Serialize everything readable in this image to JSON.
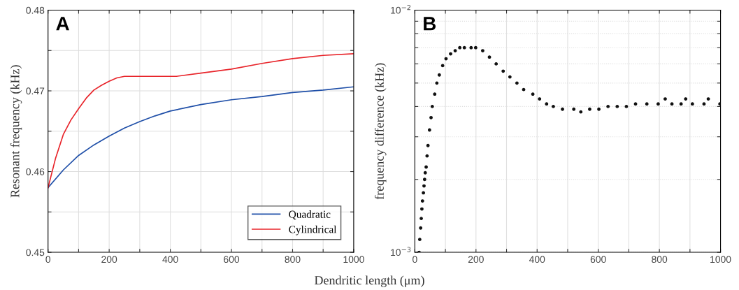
{
  "chart_data": [
    {
      "type": "line",
      "ylabel": "Resonant frequency (kHz)",
      "xlabel": "Dendritic length (μm)",
      "annotations": [
        "A"
      ],
      "xlim": [
        0,
        1000
      ],
      "xticks": [
        0,
        {
          "value": 100,
          "label": null
        },
        200,
        {
          "value": 300,
          "label": null
        },
        400,
        {
          "value": 500,
          "label": null
        },
        600,
        {
          "value": 700,
          "label": null
        },
        800,
        {
          "value": 900,
          "label": null
        },
        1000
      ],
      "ylim": [
        0.45,
        0.48
      ],
      "yticks": [
        0.45,
        {
          "value": 0.455,
          "label": null
        },
        0.46,
        {
          "value": 0.465,
          "label": null
        },
        0.47,
        {
          "value": 0.475,
          "label": null
        },
        0.48
      ],
      "grid": true,
      "legend": "bottom right",
      "series": [
        {
          "name": "Quadratic",
          "color": "#1f4fa8",
          "x": [
            0,
            50,
            100,
            150,
            200,
            250,
            300,
            350,
            400,
            500,
            600,
            700,
            800,
            900,
            1000
          ],
          "values": [
            0.458,
            0.4602,
            0.462,
            0.4633,
            0.4644,
            0.4654,
            0.4662,
            0.4669,
            0.4675,
            0.4683,
            0.4689,
            0.4693,
            0.4698,
            0.4701,
            0.4705
          ]
        },
        {
          "name": "Cylindrical",
          "color": "#e8242a",
          "x": [
            0,
            25,
            50,
            75,
            100,
            125,
            150,
            175,
            200,
            225,
            250,
            420,
            500,
            600,
            700,
            800,
            900,
            1000
          ],
          "values": [
            0.458,
            0.4617,
            0.4646,
            0.4664,
            0.4678,
            0.4691,
            0.4701,
            0.4707,
            0.4712,
            0.4716,
            0.4718,
            0.4718,
            0.4722,
            0.4727,
            0.4734,
            0.474,
            0.4744,
            0.4746
          ]
        }
      ]
    },
    {
      "type": "scatter",
      "ylabel": "frequency difference (kHz)",
      "annotations": [
        "B"
      ],
      "log": "y",
      "marker": "circle",
      "xlim": [
        0,
        1000
      ],
      "xticks": [
        0,
        {
          "value": 100,
          "label": null
        },
        200,
        {
          "value": 300,
          "label": null
        },
        400,
        {
          "value": 500,
          "label": null
        },
        600,
        {
          "value": 700,
          "label": null
        },
        800,
        {
          "value": 900,
          "label": null
        },
        1000
      ],
      "ylim": [
        0.001,
        0.01
      ],
      "yticks": [
        {
          "value": 0.001,
          "label": "10$^{−3}$"
        },
        {
          "value": 0.002,
          "label": null
        },
        {
          "value": 0.003,
          "label": null
        },
        {
          "value": 0.004,
          "label": null
        },
        {
          "value": 0.005,
          "label": null
        },
        {
          "value": 0.006,
          "label": null
        },
        {
          "value": 0.007,
          "label": null
        },
        {
          "value": 0.008,
          "label": null
        },
        {
          "value": 0.009,
          "label": null
        },
        {
          "value": 0.01,
          "label": "10$^{−2}$"
        }
      ],
      "grid": true,
      "series": [
        {
          "color": "#111111",
          "x": [
            14,
            16,
            19,
            21,
            23,
            25,
            28,
            30,
            32,
            34,
            37,
            40,
            43,
            48,
            53,
            57,
            65,
            72,
            80,
            91,
            102,
            117,
            132,
            147,
            162,
            184,
            199,
            222,
            244,
            266,
            289,
            311,
            334,
            356,
            386,
            408,
            431,
            453,
            483,
            520,
            543,
            572,
            602,
            632,
            662,
            692,
            722,
            759,
            796,
            819,
            841,
            871,
            886,
            908,
            946,
            960,
            998
          ],
          "values": [
            0.001,
            0.00113,
            0.00126,
            0.00138,
            0.00151,
            0.00163,
            0.00176,
            0.00188,
            0.002,
            0.00213,
            0.00225,
            0.0025,
            0.00276,
            0.0032,
            0.0036,
            0.004,
            0.0045,
            0.005,
            0.0054,
            0.0059,
            0.0063,
            0.0066,
            0.0068,
            0.007,
            0.007,
            0.007,
            0.007,
            0.0068,
            0.0064,
            0.006,
            0.0056,
            0.0053,
            0.005,
            0.0047,
            0.0045,
            0.0043,
            0.0041,
            0.004,
            0.0039,
            0.0039,
            0.0038,
            0.0039,
            0.0039,
            0.004,
            0.004,
            0.004,
            0.0041,
            0.0041,
            0.0041,
            0.0043,
            0.0041,
            0.0041,
            0.0043,
            0.0041,
            0.0041,
            0.0043,
            0.0041
          ]
        }
      ]
    }
  ]
}
